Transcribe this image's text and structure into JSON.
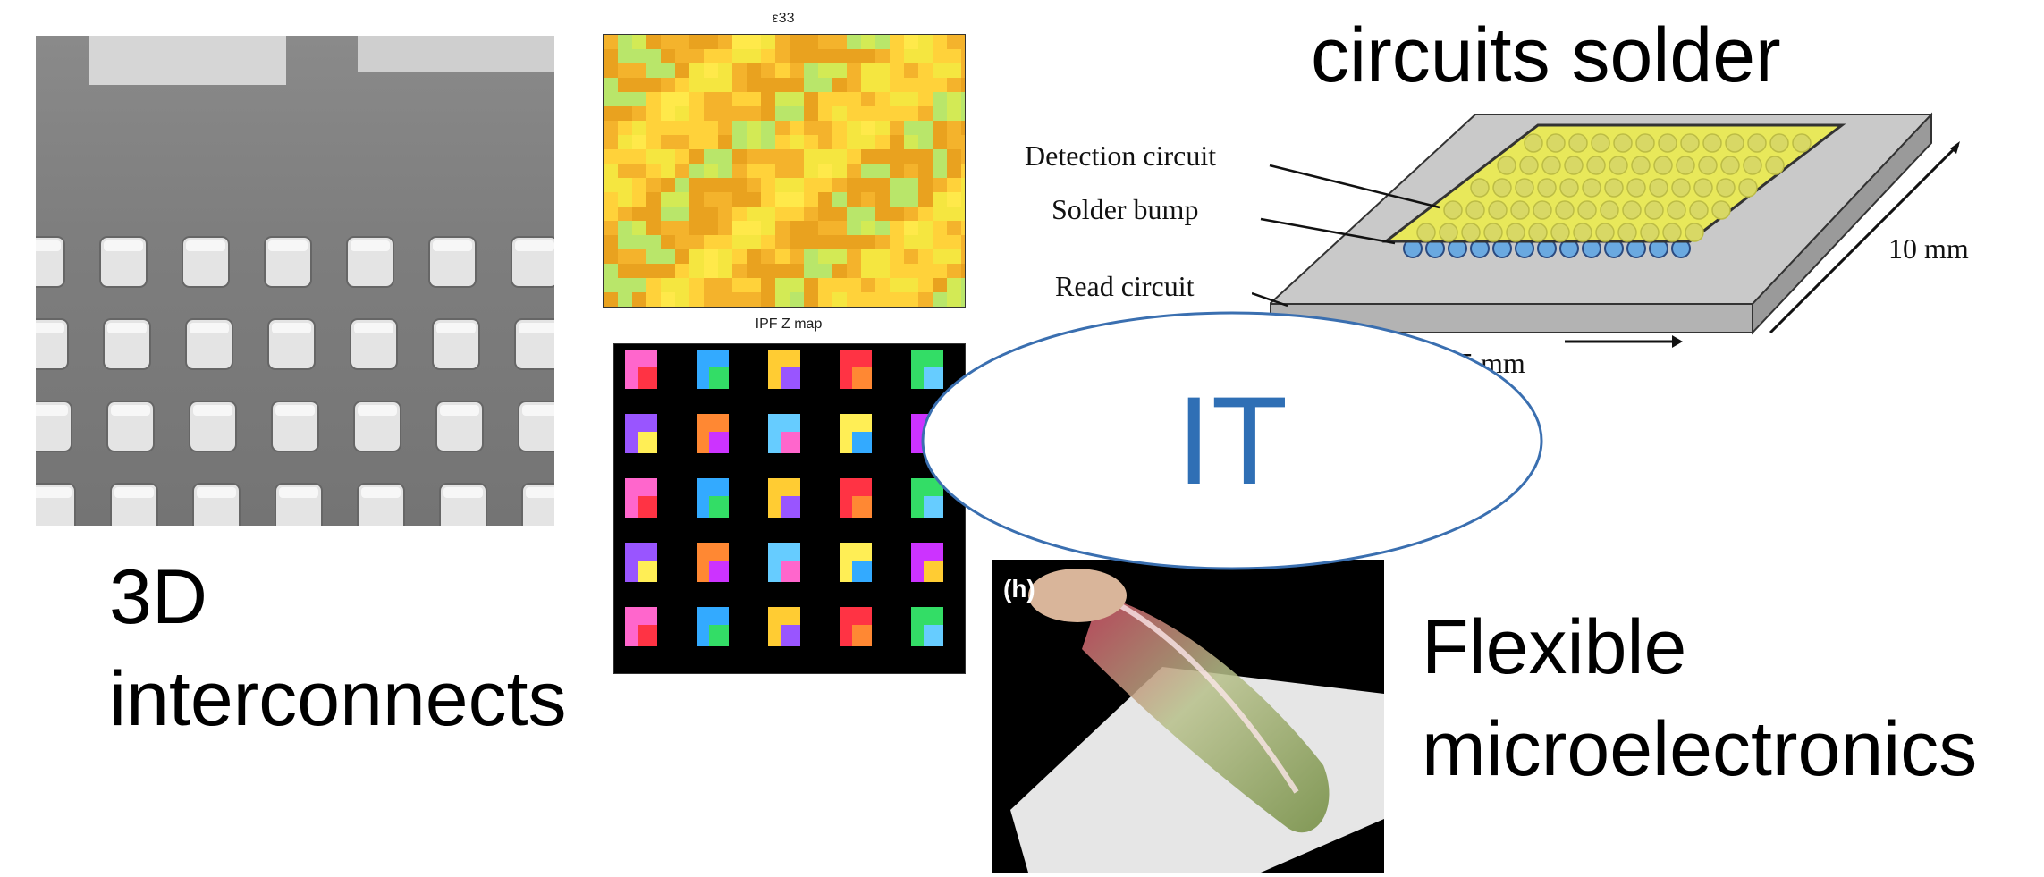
{
  "labels": {
    "interconnects_line1": "3D",
    "interconnects_line2": "interconnects",
    "circuits": "circuits solder",
    "flexible_line1": "Flexible",
    "flexible_line2": "microelectronics",
    "center": "IT"
  },
  "strain_map": {
    "title": "ε33"
  },
  "ipf_map": {
    "title": "IPF Z map"
  },
  "flex_photo": {
    "tag": "(h)"
  },
  "chip_diagram": {
    "detection": "Detection circuit",
    "solder": "Solder bump",
    "read": "Read circuit",
    "dim_right": "10 mm",
    "dim_bottom": "15 mm"
  },
  "colors": {
    "ellipse_stroke": "#3a6fb0",
    "ellipse_text": "#2f6fb5"
  }
}
